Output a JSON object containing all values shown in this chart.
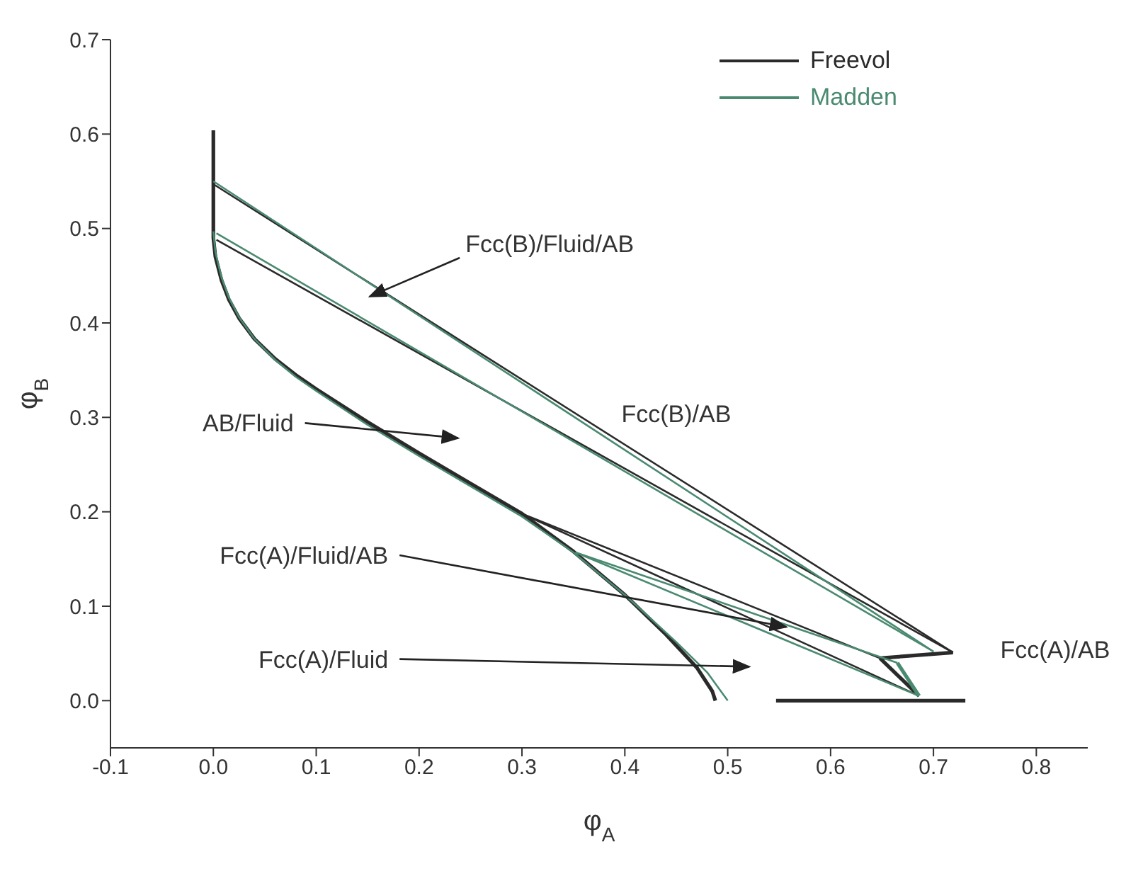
{
  "chart_data": {
    "type": "line",
    "xlabel": "φ$_{A}$",
    "ylabel": "φ$_{B}$",
    "xlim": [
      -0.1,
      0.85
    ],
    "ylim": [
      -0.05,
      0.7
    ],
    "xticks": [
      -0.1,
      {
        "value": 0,
        "label": "0.0"
      },
      0.1,
      0.2,
      0.3,
      0.4,
      0.5,
      0.6,
      0.7,
      0.8
    ],
    "yticks": [
      {
        "value": 0,
        "label": "0.0"
      },
      0.1,
      0.2,
      0.3,
      0.4,
      0.5,
      0.6,
      0.7
    ],
    "legend": "top right",
    "marker": "none",
    "line_style": "solid",
    "series": [
      {
        "name": "Freevol",
        "color": "#2a2a2a",
        "x": [
          0,
          0,
          0.002,
          0.008,
          0.015,
          0.025,
          0.04,
          0.06,
          0.08,
          0.1,
          0.15,
          0.2,
          0.25,
          0.3,
          0.35,
          0.4,
          0.44,
          0.47,
          0.485,
          0.488
        ],
        "values": [
          0.604,
          0.49,
          0.47,
          0.445,
          0.425,
          0.405,
          0.383,
          0.362,
          0.345,
          0.33,
          0.295,
          0.262,
          0.23,
          0.198,
          0.158,
          0.112,
          0.07,
          0.035,
          0.01,
          0.0
        ]
      },
      {
        "name": "Madden",
        "color": "#4a8a70",
        "x": [
          0,
          0.002,
          0.008,
          0.015,
          0.025,
          0.04,
          0.06,
          0.08,
          0.1,
          0.15,
          0.2,
          0.25,
          0.3,
          0.35,
          0.4,
          0.45,
          0.48,
          0.5
        ],
        "values": [
          0.497,
          0.475,
          0.448,
          0.427,
          0.406,
          0.383,
          0.361,
          0.343,
          0.328,
          0.292,
          0.259,
          0.227,
          0.195,
          0.157,
          0.112,
          0.062,
          0.03,
          0.0
        ]
      },
      {
        "color": "#2a2a2a",
        "x": [
          0.547,
          0.731
        ],
        "values": [
          0.0,
          0.0
        ]
      },
      {
        "color": "#2a2a2a",
        "x": [
          0.648,
          0.719
        ],
        "values": [
          0.045,
          0.051
        ]
      },
      {
        "color": "#2a2a2a",
        "x": [
          0,
          0.719
        ],
        "values": [
          0.547,
          0.051
        ]
      },
      {
        "color": "#2a2a2a",
        "x": [
          0.003,
          0.719
        ],
        "values": [
          0.488,
          0.051
        ]
      },
      {
        "color": "#2a2a2a",
        "x": [
          0.3,
          0.648
        ],
        "values": [
          0.198,
          0.045
        ]
      },
      {
        "color": "#2a2a2a",
        "x": [
          0.3,
          0.686
        ],
        "values": [
          0.198,
          0.005
        ]
      },
      {
        "color": "#2a2a2a",
        "x": [
          0.648,
          0.686
        ],
        "values": [
          0.045,
          0.005
        ]
      },
      {
        "color": "#4a8a70",
        "x": [
          0,
          0.7
        ],
        "values": [
          0.55,
          0.052
        ]
      },
      {
        "color": "#4a8a70",
        "x": [
          0.003,
          0.7
        ],
        "values": [
          0.495,
          0.052
        ]
      },
      {
        "color": "#4a8a70",
        "x": [
          0.352,
          0.665
        ],
        "values": [
          0.157,
          0.04
        ]
      },
      {
        "color": "#4a8a70",
        "x": [
          0.352,
          0.686
        ],
        "values": [
          0.157,
          0.005
        ]
      },
      {
        "color": "#4a8a70",
        "x": [
          0.665,
          0.686
        ],
        "values": [
          0.04,
          0.005
        ]
      }
    ],
    "annotations": [
      "Fcc(B)/Fluid/AB",
      "AB/Fluid",
      "Fcc(B)/AB",
      "Fcc(A)/Fluid/AB",
      "Fcc(A)/Fluid",
      "Fcc(A)/AB"
    ]
  }
}
